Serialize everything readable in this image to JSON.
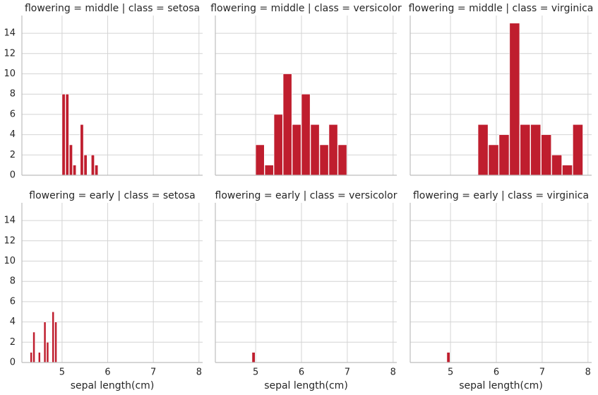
{
  "chart_data": [
    {
      "type": "histogram",
      "title": "flowering = middle | class = setosa",
      "bins": [
        5.0,
        5.08,
        5.16,
        5.24,
        5.32,
        5.4,
        5.48,
        5.56,
        5.64,
        5.72,
        5.8
      ],
      "values": [
        8,
        8,
        3,
        1,
        0,
        5,
        2,
        0,
        2,
        1
      ],
      "color": "#bf1e2e",
      "xlim": [
        4.12,
        8.08
      ],
      "ylim": [
        0,
        15.75
      ],
      "xticks": [
        5,
        6,
        7,
        8
      ],
      "yticks": [
        0,
        2,
        4,
        6,
        8,
        10,
        12,
        14
      ],
      "grid": true
    },
    {
      "type": "histogram",
      "title": "flowering = middle | class = versicolor",
      "bins": [
        5.0,
        5.2,
        5.4,
        5.6,
        5.8,
        6.0,
        6.2,
        6.4,
        6.6,
        6.8,
        7.0
      ],
      "values": [
        3,
        1,
        6,
        10,
        5,
        8,
        5,
        3,
        5,
        3
      ],
      "color": "#bf1e2e",
      "xlim": [
        4.12,
        8.08
      ],
      "ylim": [
        0,
        15.75
      ],
      "xticks": [
        5,
        6,
        7,
        8
      ],
      "yticks": [
        0,
        2,
        4,
        6,
        8,
        10,
        12,
        14
      ],
      "grid": true
    },
    {
      "type": "histogram",
      "title": "flowering = middle | class = virginica",
      "bins": [
        5.6,
        5.83,
        6.06,
        6.29,
        6.52,
        6.75,
        6.98,
        7.21,
        7.44,
        7.67,
        7.9
      ],
      "values": [
        5,
        3,
        4,
        15,
        5,
        5,
        4,
        2,
        1,
        5
      ],
      "color": "#bf1e2e",
      "xlim": [
        4.12,
        8.08
      ],
      "ylim": [
        0,
        15.75
      ],
      "xticks": [
        5,
        6,
        7,
        8
      ],
      "yticks": [
        0,
        2,
        4,
        6,
        8,
        10,
        12,
        14
      ],
      "grid": true
    },
    {
      "type": "histogram",
      "title": "flowering = early | class = setosa",
      "xlabel": "sepal length(cm)",
      "bins": [
        4.3,
        4.36,
        4.42,
        4.48,
        4.54,
        4.6,
        4.66,
        4.72,
        4.78,
        4.84,
        4.9
      ],
      "values": [
        1,
        3,
        0,
        1,
        0,
        4,
        2,
        0,
        5,
        4
      ],
      "color": "#bf1e2e",
      "xlim": [
        4.12,
        8.08
      ],
      "ylim": [
        0,
        15.75
      ],
      "xticks": [
        5,
        6,
        7,
        8
      ],
      "yticks": [
        0,
        2,
        4,
        6,
        8,
        10,
        12,
        14
      ],
      "grid": true
    },
    {
      "type": "histogram",
      "title": "flowering = early | class = versicolor",
      "xlabel": "sepal length(cm)",
      "bins": [
        4.92,
        5.0
      ],
      "values": [
        1
      ],
      "color": "#bf1e2e",
      "xlim": [
        4.12,
        8.08
      ],
      "ylim": [
        0,
        15.75
      ],
      "xticks": [
        5,
        6,
        7,
        8
      ],
      "yticks": [
        0,
        2,
        4,
        6,
        8,
        10,
        12,
        14
      ],
      "grid": true
    },
    {
      "type": "histogram",
      "title": "flowering = early | class = virginica",
      "xlabel": "sepal length(cm)",
      "bins": [
        4.92,
        5.0
      ],
      "values": [
        1
      ],
      "color": "#bf1e2e",
      "xlim": [
        4.12,
        8.08
      ],
      "ylim": [
        0,
        15.75
      ],
      "xticks": [
        5,
        6,
        7,
        8
      ],
      "yticks": [
        0,
        2,
        4,
        6,
        8,
        10,
        12,
        14
      ],
      "grid": true
    }
  ]
}
